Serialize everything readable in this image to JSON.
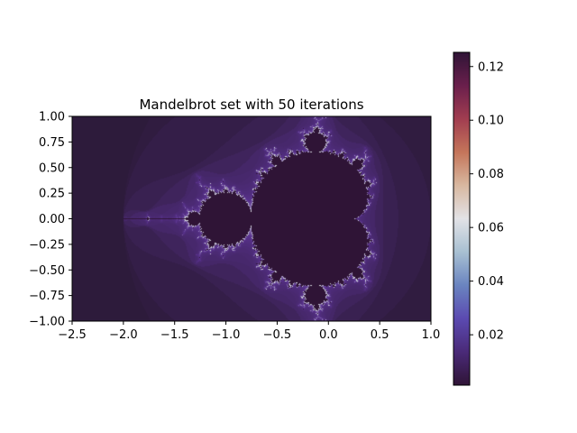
{
  "chart_data": {
    "type": "heatmap",
    "title": "Mandelbrot set with 50 iterations",
    "fractal": "mandelbrot",
    "iterations": 50,
    "xlabel": "",
    "ylabel": "",
    "xlim": [
      -2.5,
      1.0
    ],
    "ylim": [
      -1.0,
      1.0
    ],
    "x_ticks": [
      -2.5,
      -2.0,
      -1.5,
      -1.0,
      -0.5,
      0.0,
      0.5,
      1.0
    ],
    "x_tick_labels": [
      "−2.5",
      "−2.0",
      "−1.5",
      "−1.0",
      "−0.5",
      "0.0",
      "0.5",
      "1.0"
    ],
    "y_ticks": [
      1.0,
      0.75,
      0.5,
      0.25,
      0.0,
      -0.25,
      -0.5,
      -0.75,
      -1.0
    ],
    "y_tick_labels": [
      "1.00",
      "0.75",
      "0.50",
      "0.25",
      "0.00",
      "−0.25",
      "−0.50",
      "−0.75",
      "−1.00"
    ],
    "colorbar": {
      "placement": "right",
      "colormap": "twilight_shifted",
      "range": [
        0.0012,
        0.1253
      ],
      "ticks": [
        0.02,
        0.04,
        0.06,
        0.08,
        0.1,
        0.12
      ],
      "tick_labels": [
        "0.02",
        "0.04",
        "0.06",
        "0.08",
        "0.10",
        "0.12"
      ]
    },
    "colors": {
      "set_interior": "#2f1436",
      "background": "#2c1a38",
      "halo": "#5a3290",
      "edge": "#d7dbe0"
    },
    "grid": false
  }
}
